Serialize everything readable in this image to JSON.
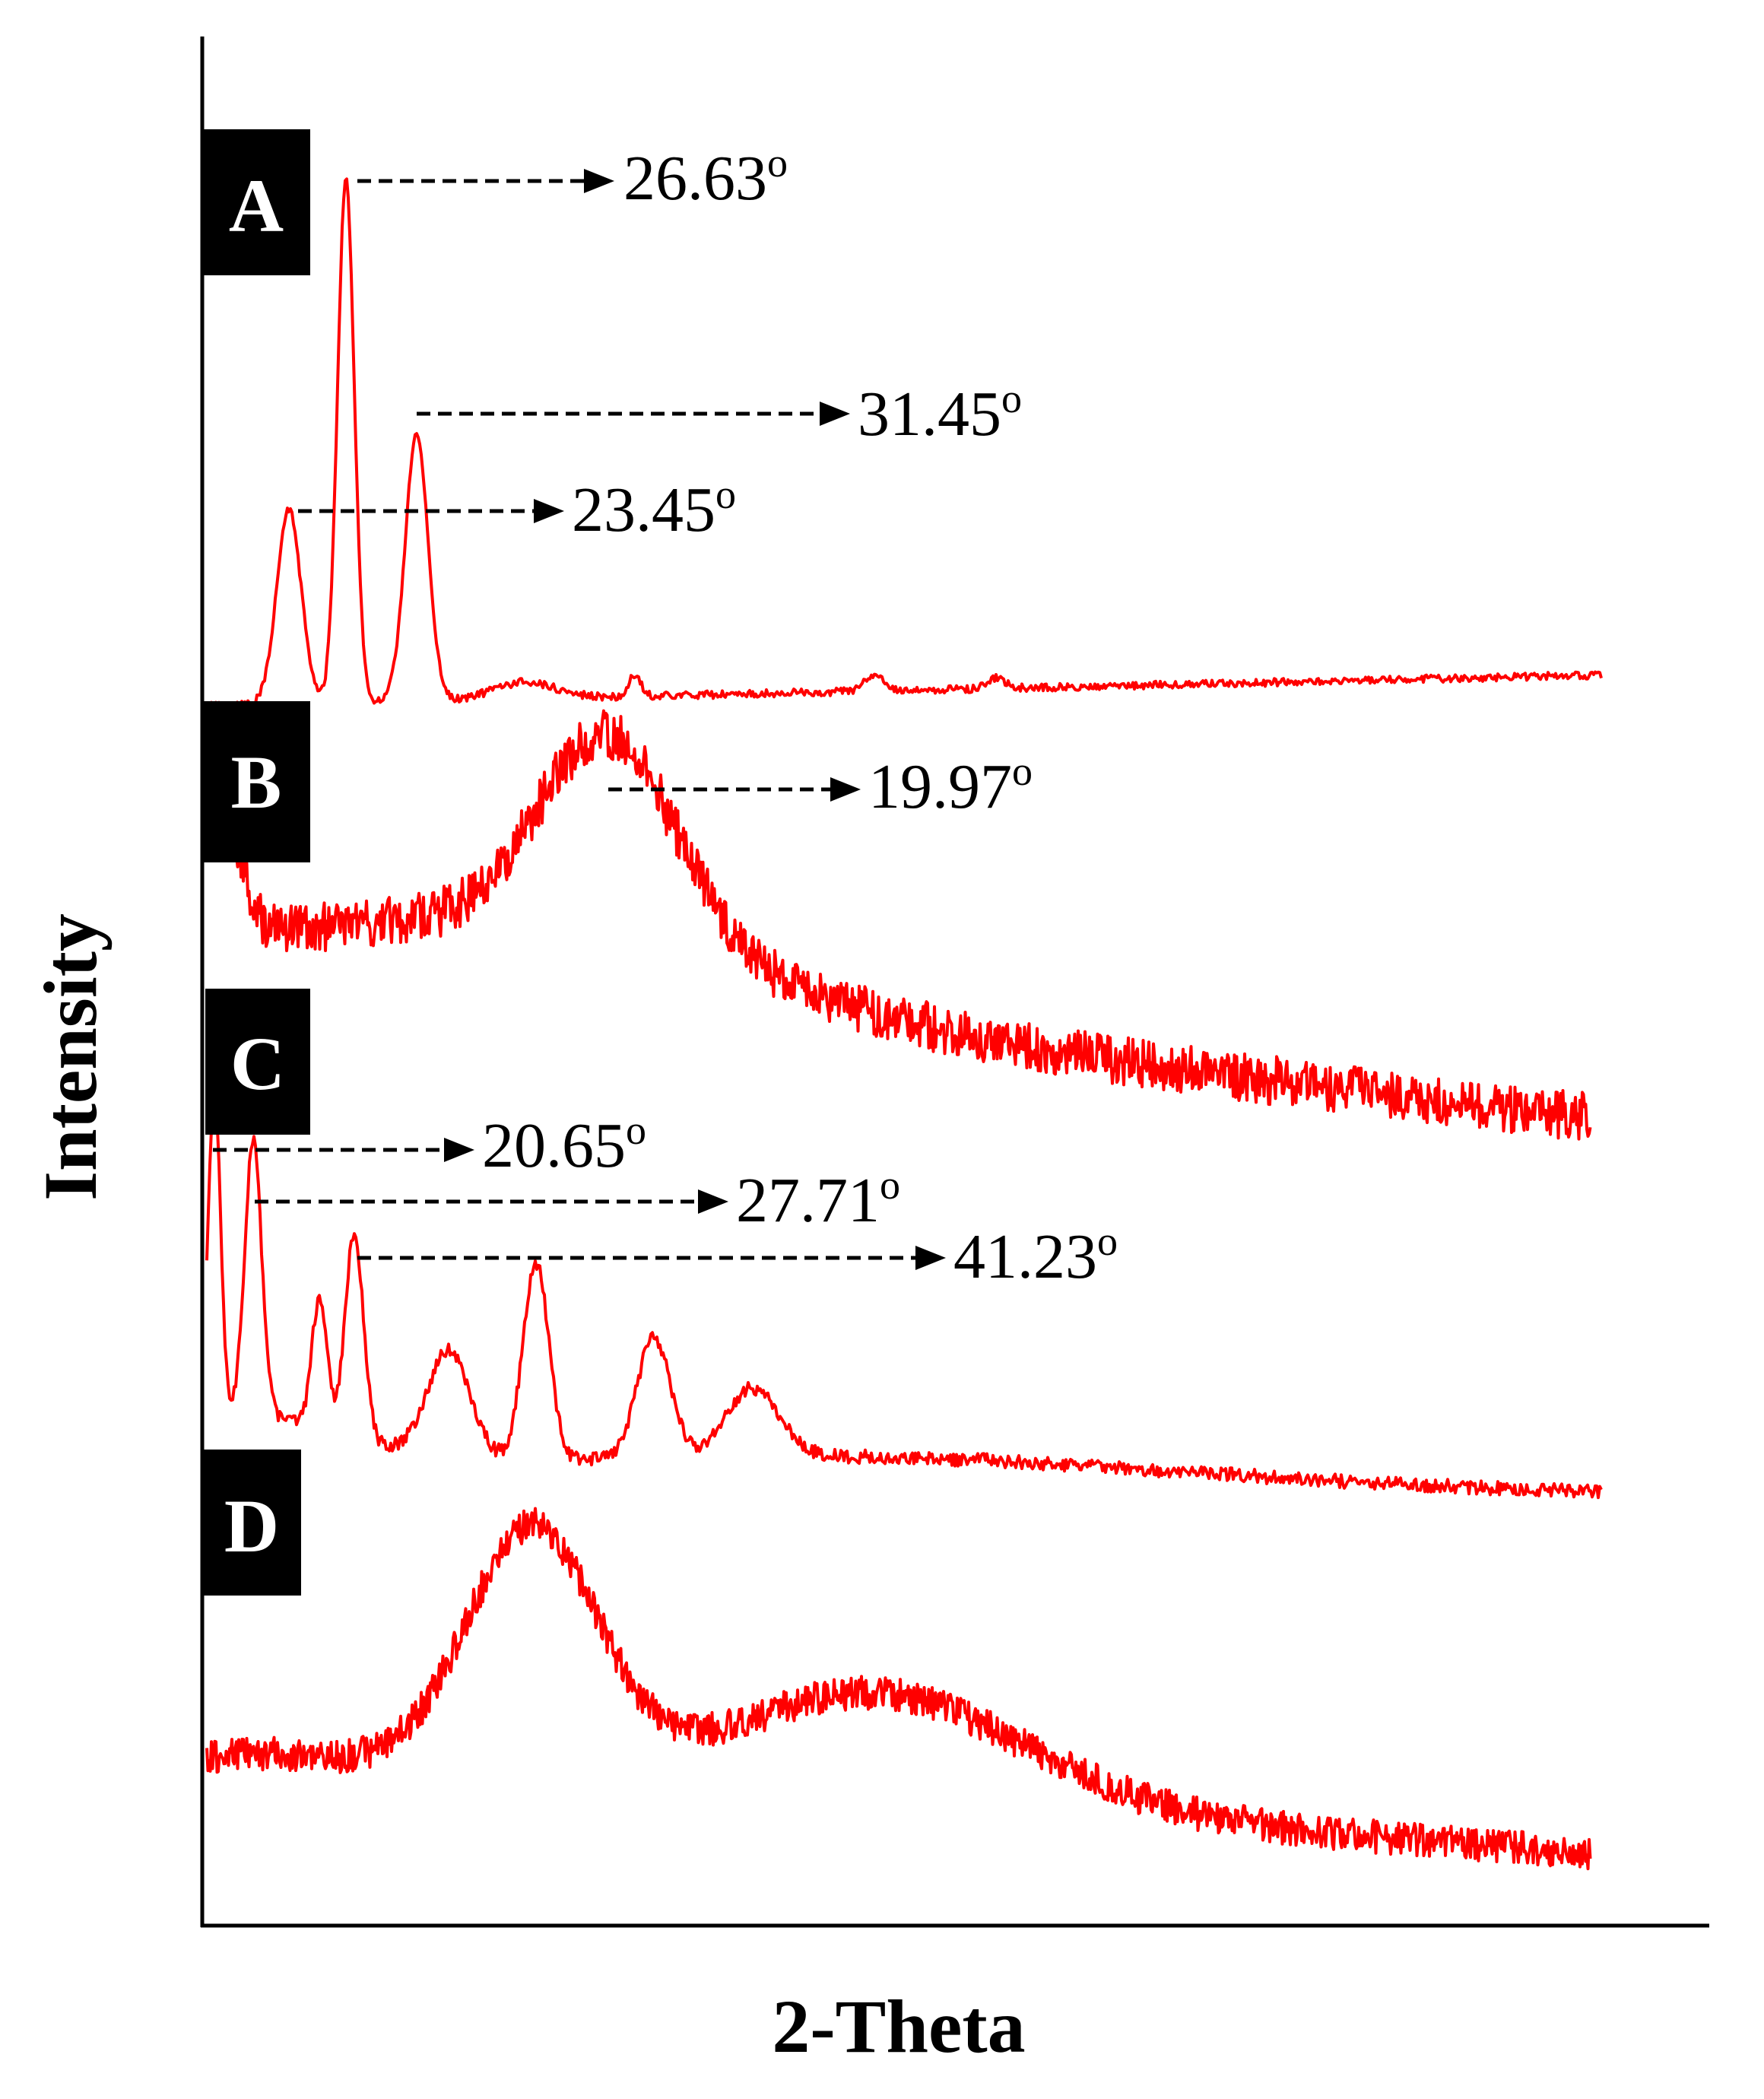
{
  "chart_data": {
    "type": "line",
    "xlabel": "2-Theta",
    "ylabel": "Intensity",
    "axes": {
      "ticks_shown": false,
      "grid": false
    },
    "line_color": "#ff0000",
    "panels": [
      {
        "label": "A",
        "peaks": [
          "26.63",
          "31.45",
          "23.45"
        ]
      },
      {
        "label": "B",
        "peaks": [
          "19.97"
        ]
      },
      {
        "label": "C",
        "peaks": [
          "20.65",
          "27.71",
          "41.23"
        ]
      },
      {
        "label": "D",
        "peaks": []
      }
    ],
    "degree_symbol": "o"
  }
}
